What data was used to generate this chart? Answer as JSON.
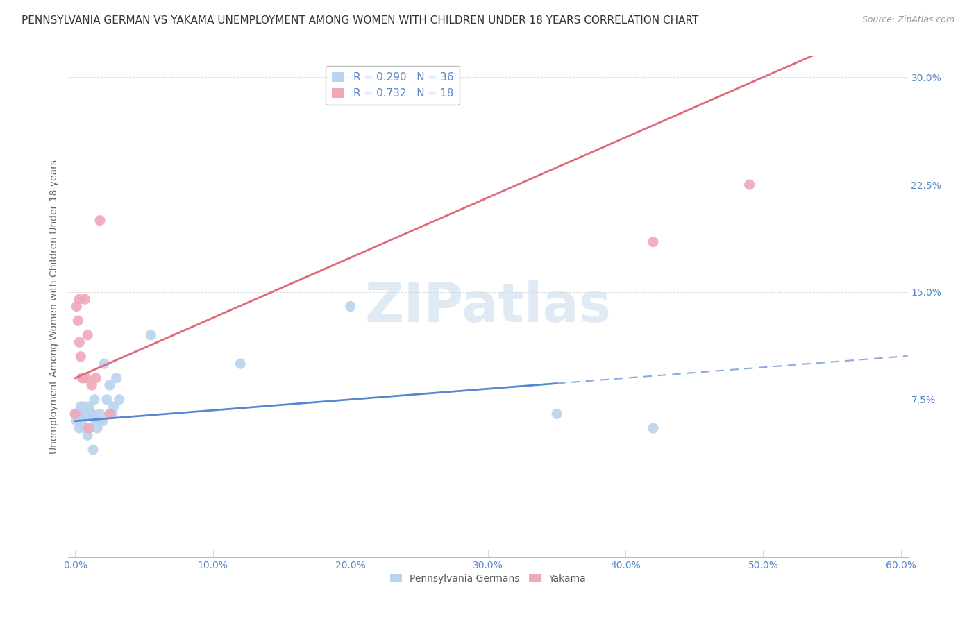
{
  "title": "PENNSYLVANIA GERMAN VS YAKAMA UNEMPLOYMENT AMONG WOMEN WITH CHILDREN UNDER 18 YEARS CORRELATION CHART",
  "source": "Source: ZipAtlas.com",
  "xlabel_ticks": [
    "0.0%",
    "",
    "",
    "",
    "",
    "",
    "",
    "",
    "",
    "10.0%",
    "",
    "",
    "",
    "",
    "",
    "",
    "",
    "",
    "",
    "20.0%",
    "",
    "",
    "",
    "",
    "",
    "",
    "",
    "",
    "",
    "30.0%",
    "",
    "",
    "",
    "",
    "",
    "",
    "",
    "",
    "",
    "40.0%",
    "",
    "",
    "",
    "",
    "",
    "",
    "",
    "",
    "",
    "50.0%",
    "",
    "",
    "",
    "",
    "",
    "",
    "",
    "",
    "",
    "60.0%"
  ],
  "xlabel_tick_vals_labels": [
    0.0,
    0.1,
    0.2,
    0.3,
    0.4,
    0.5,
    0.6
  ],
  "xlabel_labels": [
    "0.0%",
    "10.0%",
    "20.0%",
    "30.0%",
    "40.0%",
    "50.0%",
    "60.0%"
  ],
  "ylabel": "Unemployment Among Women with Children Under 18 years",
  "ylabel_ticks_labels": [
    "7.5%",
    "15.0%",
    "22.5%",
    "30.0%"
  ],
  "ylabel_tick_vals": [
    0.075,
    0.15,
    0.225,
    0.3
  ],
  "xlim": [
    -0.005,
    0.605
  ],
  "ylim": [
    -0.035,
    0.315
  ],
  "watermark": "ZIPatlas",
  "pa_german_scatter": {
    "x": [
      0.0,
      0.001,
      0.002,
      0.003,
      0.003,
      0.004,
      0.005,
      0.005,
      0.006,
      0.007,
      0.007,
      0.008,
      0.009,
      0.01,
      0.01,
      0.011,
      0.012,
      0.013,
      0.014,
      0.015,
      0.016,
      0.017,
      0.018,
      0.02,
      0.021,
      0.023,
      0.025,
      0.027,
      0.028,
      0.03,
      0.032,
      0.055,
      0.12,
      0.2,
      0.35,
      0.42
    ],
    "y": [
      0.065,
      0.06,
      0.065,
      0.065,
      0.055,
      0.07,
      0.06,
      0.065,
      0.07,
      0.055,
      0.065,
      0.065,
      0.05,
      0.065,
      0.07,
      0.065,
      0.065,
      0.04,
      0.075,
      0.06,
      0.055,
      0.06,
      0.065,
      0.06,
      0.1,
      0.075,
      0.085,
      0.065,
      0.07,
      0.09,
      0.075,
      0.12,
      0.1,
      0.14,
      0.065,
      0.055
    ],
    "color": "#b8d4ee",
    "size": 120
  },
  "yakama_scatter": {
    "x": [
      0.0,
      0.001,
      0.002,
      0.003,
      0.003,
      0.004,
      0.005,
      0.006,
      0.007,
      0.008,
      0.009,
      0.01,
      0.012,
      0.015,
      0.018,
      0.025,
      0.42,
      0.49
    ],
    "y": [
      0.065,
      0.14,
      0.13,
      0.145,
      0.115,
      0.105,
      0.09,
      0.09,
      0.145,
      0.09,
      0.12,
      0.055,
      0.085,
      0.09,
      0.2,
      0.065,
      0.185,
      0.225
    ],
    "color": "#f0a8b8",
    "size": 120
  },
  "pa_line_solid": {
    "x0": 0.0,
    "x1": 0.35,
    "y_intercept": 0.06,
    "slope": 0.075,
    "color": "#5588cc",
    "linewidth": 2.0
  },
  "pa_line_dashed": {
    "x0": 0.35,
    "x1": 0.605,
    "y_intercept": 0.06,
    "slope": 0.075,
    "color": "#88aadd",
    "linewidth": 1.5
  },
  "yakama_line": {
    "x0": 0.0,
    "x1": 0.605,
    "y_intercept": 0.09,
    "slope": 0.42,
    "color": "#e06878",
    "linewidth": 2.0
  },
  "legend_pa_color": "#b8d4ee",
  "legend_yak_color": "#f0a8b8",
  "legend_pa_label": "R = 0.290   N = 36",
  "legend_yak_label": "R = 0.732   N = 18",
  "legend_r_color": "#5588cc",
  "legend_n_color": "#e06878",
  "background_color": "#ffffff",
  "grid_color": "#cccccc",
  "title_fontsize": 11,
  "axis_label_fontsize": 10,
  "tick_fontsize": 10,
  "legend_fontsize": 11,
  "source_fontsize": 9
}
